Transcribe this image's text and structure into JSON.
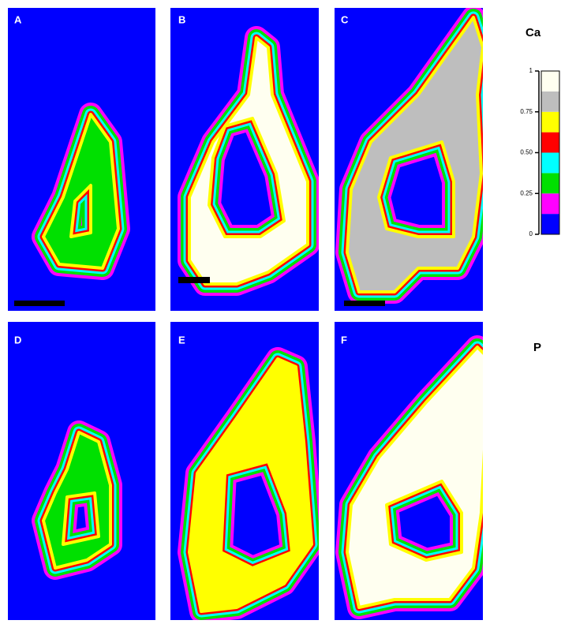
{
  "panels": [
    {
      "label": "A"
    },
    {
      "label": "B"
    },
    {
      "label": "C"
    },
    {
      "label": "D"
    },
    {
      "label": "E"
    },
    {
      "label": "F"
    }
  ],
  "rows": [
    {
      "label": "Ca"
    },
    {
      "label": "P"
    }
  ],
  "colorbar": {
    "ticks": [
      1,
      0.75,
      {
        "value": 0.5,
        "label": "0.50"
      },
      0.25,
      0
    ],
    "range": [
      0,
      1
    ],
    "colors": [
      "#0000ff",
      "#ff00ff",
      "#00e000",
      "#00ffff",
      "#ff0000",
      "#ffff00",
      "#bebebe",
      "#fffff0"
    ]
  }
}
